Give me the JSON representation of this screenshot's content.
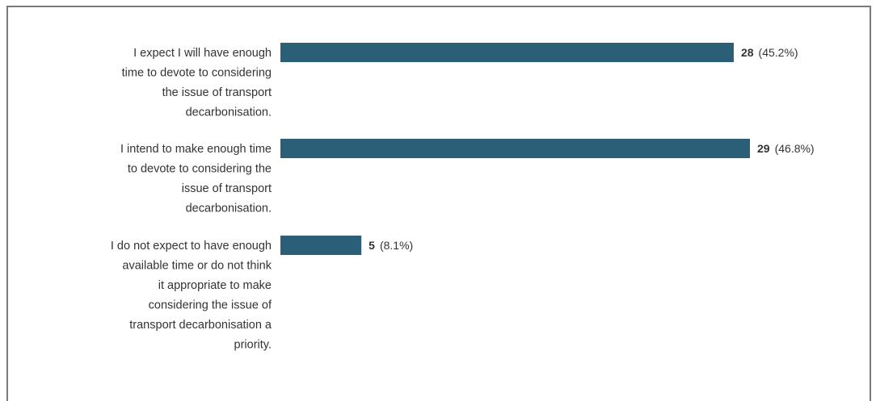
{
  "chart_data": {
    "type": "bar",
    "orientation": "horizontal",
    "categories": [
      "I expect I will have enough time to devote to considering the issue of transport decarbonisation.",
      "I intend to make enough time to devote to considering the issue of transport decarbonisation.",
      "I do not expect to have enough available time or do not think it appropriate to make considering the issue of transport decarbonisation a priority."
    ],
    "category_lines": [
      [
        "I expect I will have enough",
        "time to devote to considering",
        "the issue of transport",
        "decarbonisation."
      ],
      [
        "I intend to make enough time",
        "to devote to considering the",
        "issue of transport",
        "decarbonisation."
      ],
      [
        "I do not expect to have enough",
        "available time or do not think",
        "it appropriate to make",
        "considering the issue of",
        "transport decarbonisation a",
        "priority."
      ]
    ],
    "values": [
      28,
      29,
      5
    ],
    "percent_labels": [
      "(45.2%)",
      "(46.8%)",
      "(8.1%)"
    ],
    "bar_color": "#2b5f78",
    "xlim": [
      0,
      29
    ],
    "grid": false,
    "legend": "none",
    "title": "",
    "xlabel": "",
    "ylabel": ""
  }
}
